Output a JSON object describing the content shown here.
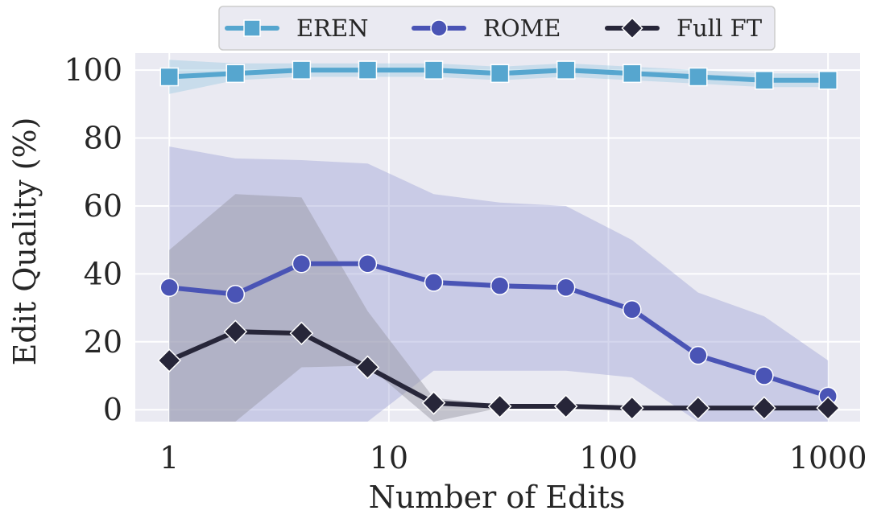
{
  "chart_data": {
    "type": "line",
    "xscale": "log",
    "x": [
      1,
      2,
      4,
      8,
      16,
      32,
      64,
      128,
      256,
      512,
      1000
    ],
    "xticks": [
      1,
      10,
      100,
      1000
    ],
    "xtick_labels": [
      "1",
      "10",
      "100",
      "1000"
    ],
    "yticks": [
      0,
      20,
      40,
      60,
      80,
      100
    ],
    "ytick_labels": [
      "0",
      "20",
      "40",
      "60",
      "80",
      "100"
    ],
    "xlim": [
      0.7,
      1400
    ],
    "ylim": [
      -3.5,
      105
    ],
    "xlabel": "Number of Edits",
    "ylabel": "Edit Quality (%)",
    "grid": true,
    "legend_position": "top-center",
    "series": [
      {
        "name": "EREN",
        "marker": "square",
        "color": "#56a6cf",
        "band_color": "#9fcbe3",
        "values": [
          98,
          99,
          100,
          100,
          100,
          99,
          100,
          99,
          98,
          97,
          97
        ],
        "band_upper": [
          103,
          102,
          102,
          102,
          102,
          101,
          102,
          101,
          100,
          99,
          99
        ],
        "band_lower": [
          93,
          97,
          98,
          98,
          98,
          97,
          98,
          97,
          96,
          95,
          95
        ]
      },
      {
        "name": "ROME",
        "marker": "circle",
        "color": "#4a54b5",
        "band_color": "#a2a6d6",
        "values": [
          36,
          34,
          43,
          43,
          37.5,
          36.5,
          36,
          29.5,
          16,
          10,
          4
        ],
        "band_upper": [
          77.5,
          74,
          73.5,
          72.5,
          63.5,
          61,
          60,
          50,
          34.5,
          27.5,
          14.5
        ],
        "band_lower": [
          -3.5,
          -3.5,
          -3.5,
          -3.5,
          11.5,
          11.5,
          11.5,
          9.5,
          -3.5,
          -3.5,
          -3.5
        ]
      },
      {
        "name": "Full FT",
        "marker": "diamond",
        "color": "#272639",
        "band_color": "#9a9aa5",
        "values": [
          14.5,
          23,
          22.5,
          12.5,
          2,
          1,
          1,
          0.5,
          0.5,
          0.5,
          0.5
        ],
        "band_upper": [
          47,
          63.5,
          62.5,
          29,
          3.5,
          1.5,
          1.5,
          1,
          1,
          1,
          1
        ],
        "band_lower": [
          -3.5,
          -3.5,
          12.5,
          13,
          -3.5,
          0.5,
          0.5,
          0,
          0,
          0,
          0
        ]
      }
    ]
  }
}
